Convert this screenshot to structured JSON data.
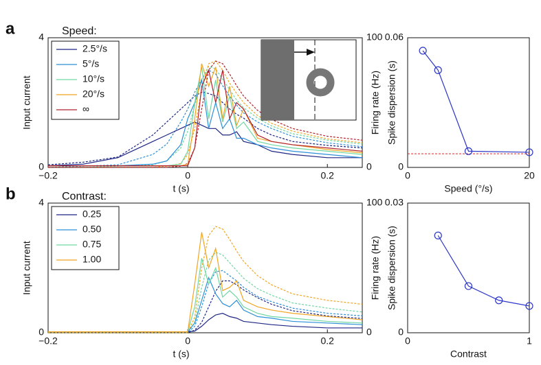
{
  "chart_data": [
    {
      "type": "line",
      "panel_label": "a",
      "legend_title": "Speed:",
      "xlabel": "t (s)",
      "ylabel": "Input current",
      "y2label": "Firing rate (Hz)",
      "x": [
        -0.2,
        -0.15,
        -0.1,
        -0.05,
        -0.03,
        -0.01,
        0,
        0.01,
        0.02,
        0.03,
        0.04,
        0.05,
        0.06,
        0.07,
        0.08,
        0.1,
        0.12,
        0.15,
        0.2,
        0.25
      ],
      "xlim": [
        -0.2,
        0.25
      ],
      "xticks": [
        {
          "value": -0.2,
          "label": "−0.2"
        },
        0,
        0.2
      ],
      "ylim": [
        0,
        4
      ],
      "yticks": [
        0,
        4
      ],
      "y2lim": [
        0,
        100
      ],
      "y2ticks": [
        0,
        100
      ],
      "series": [
        {
          "name": "2.5°/s",
          "color": "#1c2583",
          "values": [
            0.05,
            0.1,
            0.3,
            0.8,
            1.0,
            1.2,
            1.3,
            1.4,
            1.3,
            1.2,
            1.2,
            1.0,
            1.0,
            1.1,
            0.8,
            0.7,
            0.5,
            0.4,
            0.3,
            0.3
          ],
          "rate_values": [
            2,
            4,
            8,
            25,
            35,
            45,
            50,
            55,
            58,
            57,
            55,
            50,
            45,
            41,
            38,
            30,
            25,
            20,
            17,
            15
          ]
        },
        {
          "name": "5°/s",
          "color": "#2a8fd8",
          "values": [
            0.05,
            0.05,
            0.05,
            0.1,
            0.2,
            0.7,
            1.5,
            2.0,
            2.7,
            1.2,
            2.0,
            1.2,
            1.5,
            0.9,
            0.9,
            0.7,
            0.6,
            0.5,
            0.4,
            0.3
          ],
          "rate_values": [
            0,
            1,
            2,
            10,
            18,
            35,
            45,
            58,
            68,
            75,
            72,
            63,
            55,
            48,
            42,
            35,
            30,
            24,
            19,
            16
          ]
        },
        {
          "name": "10°/s",
          "color": "#6fd6a0",
          "values": [
            0.05,
            0.05,
            0.05,
            0.05,
            0.05,
            0.1,
            0.5,
            2.0,
            3.1,
            1.5,
            2.7,
            1.4,
            2.2,
            1.2,
            1.4,
            0.8,
            0.7,
            0.6,
            0.5,
            0.4
          ],
          "rate_values": [
            0,
            0,
            1,
            2,
            5,
            15,
            28,
            48,
            68,
            78,
            76,
            68,
            60,
            52,
            46,
            38,
            32,
            26,
            21,
            18
          ]
        },
        {
          "name": "20°/s",
          "color": "#f0a522",
          "values": [
            0.05,
            0.05,
            0.05,
            0.05,
            0.05,
            0.05,
            0.1,
            1.5,
            3.2,
            2.5,
            3.1,
            1.5,
            2.5,
            1.3,
            1.8,
            0.9,
            0.8,
            0.7,
            0.55,
            0.45
          ],
          "rate_values": [
            0,
            0,
            0,
            0,
            1,
            3,
            10,
            30,
            60,
            80,
            82,
            75,
            65,
            57,
            50,
            40,
            34,
            28,
            22,
            19
          ]
        },
        {
          "name": "∞",
          "color": "#b0202a",
          "values": [
            0.05,
            0.05,
            0.05,
            0.05,
            0.05,
            0.05,
            0.05,
            0.6,
            2.5,
            3.0,
            2.0,
            3.0,
            1.5,
            2.0,
            1.8,
            1.0,
            0.8,
            0.7,
            0.6,
            0.5
          ],
          "rate_values": [
            0,
            0,
            0,
            0,
            0,
            1,
            3,
            15,
            45,
            75,
            82,
            80,
            72,
            63,
            55,
            44,
            37,
            30,
            24,
            21
          ]
        }
      ]
    },
    {
      "type": "line",
      "markers": true,
      "xlabel": "Speed (°/s)",
      "ylabel": "Spike dispersion (s)",
      "x": [
        2.5,
        5,
        10,
        20
      ],
      "xlim": [
        0,
        20
      ],
      "xticks": [
        0,
        20
      ],
      "ylim": [
        0,
        0.06
      ],
      "yticks": [
        0,
        0.06
      ],
      "reference": 0.0063,
      "reference_color": "#e02020",
      "series": [
        {
          "color": "#2a35c8",
          "values": [
            0.054,
            0.045,
            0.0075,
            0.007
          ]
        }
      ]
    },
    {
      "type": "line",
      "panel_label": "b",
      "legend_title": "Contrast:",
      "xlabel": "t (s)",
      "ylabel": "Input current",
      "y2label": "Firing rate (Hz)",
      "x": [
        -0.2,
        -0.15,
        -0.1,
        -0.05,
        -0.03,
        -0.01,
        0,
        0.01,
        0.02,
        0.03,
        0.04,
        0.05,
        0.06,
        0.07,
        0.08,
        0.1,
        0.12,
        0.15,
        0.2,
        0.25
      ],
      "xlim": [
        -0.2,
        0.25
      ],
      "xticks": [
        {
          "value": -0.2,
          "label": "−0.2"
        },
        0,
        0.2
      ],
      "ylim": [
        0,
        4
      ],
      "yticks": [
        0,
        4
      ],
      "y2lim": [
        0,
        100
      ],
      "y2ticks": [
        0,
        100
      ],
      "series": [
        {
          "name": "0.25",
          "color": "#1c2583",
          "values": [
            0.03,
            0.03,
            0.03,
            0.03,
            0.03,
            0.03,
            0.03,
            0.05,
            0.2,
            0.4,
            0.55,
            0.6,
            0.5,
            0.45,
            0.35,
            0.3,
            0.25,
            0.2,
            0.15,
            0.15
          ],
          "rate_values": [
            0,
            0,
            0,
            0,
            0,
            0,
            0,
            2,
            8,
            20,
            32,
            40,
            40,
            37,
            33,
            27,
            22,
            17,
            13,
            11
          ]
        },
        {
          "name": "0.50",
          "color": "#2a8fd8",
          "values": [
            0.03,
            0.03,
            0.03,
            0.03,
            0.03,
            0.03,
            0.03,
            0.3,
            1.0,
            1.7,
            1.2,
            0.9,
            0.8,
            1.0,
            0.7,
            0.5,
            0.45,
            0.35,
            0.3,
            0.25
          ],
          "rate_values": [
            0,
            0,
            0,
            0,
            0,
            0,
            0,
            5,
            20,
            38,
            47,
            48,
            44,
            40,
            35,
            28,
            24,
            19,
            15,
            13
          ]
        },
        {
          "name": "0.75",
          "color": "#6fd6a0",
          "values": [
            0.03,
            0.03,
            0.03,
            0.03,
            0.03,
            0.03,
            0.03,
            0.8,
            2.3,
            1.5,
            2.0,
            1.1,
            1.3,
            1.1,
            0.8,
            0.6,
            0.5,
            0.45,
            0.35,
            0.3
          ],
          "rate_values": [
            0,
            0,
            0,
            0,
            0,
            0,
            0,
            8,
            35,
            56,
            62,
            60,
            54,
            48,
            42,
            34,
            29,
            23,
            19,
            16
          ]
        },
        {
          "name": "1.00",
          "color": "#f0a522",
          "values": [
            0.03,
            0.03,
            0.03,
            0.03,
            0.03,
            0.03,
            0.03,
            1.5,
            3.1,
            2.0,
            2.6,
            1.3,
            1.4,
            1.6,
            1.0,
            0.8,
            0.7,
            0.6,
            0.5,
            0.4
          ],
          "rate_values": [
            0,
            0,
            0,
            0,
            0,
            0,
            0,
            12,
            50,
            75,
            82,
            80,
            72,
            63,
            55,
            44,
            37,
            30,
            25,
            22
          ]
        }
      ]
    },
    {
      "type": "line",
      "markers": true,
      "xlabel": "Contrast",
      "ylabel": "Spike dispersion (s)",
      "x": [
        0.25,
        0.5,
        0.75,
        1
      ],
      "xlim": [
        0,
        1
      ],
      "xticks": [
        0,
        1
      ],
      "ylim": [
        0,
        0.03
      ],
      "yticks": [
        0,
        0.03
      ],
      "series": [
        {
          "color": "#2a35c8",
          "values": [
            0.0225,
            0.0108,
            0.0075,
            0.0062
          ]
        }
      ]
    }
  ]
}
